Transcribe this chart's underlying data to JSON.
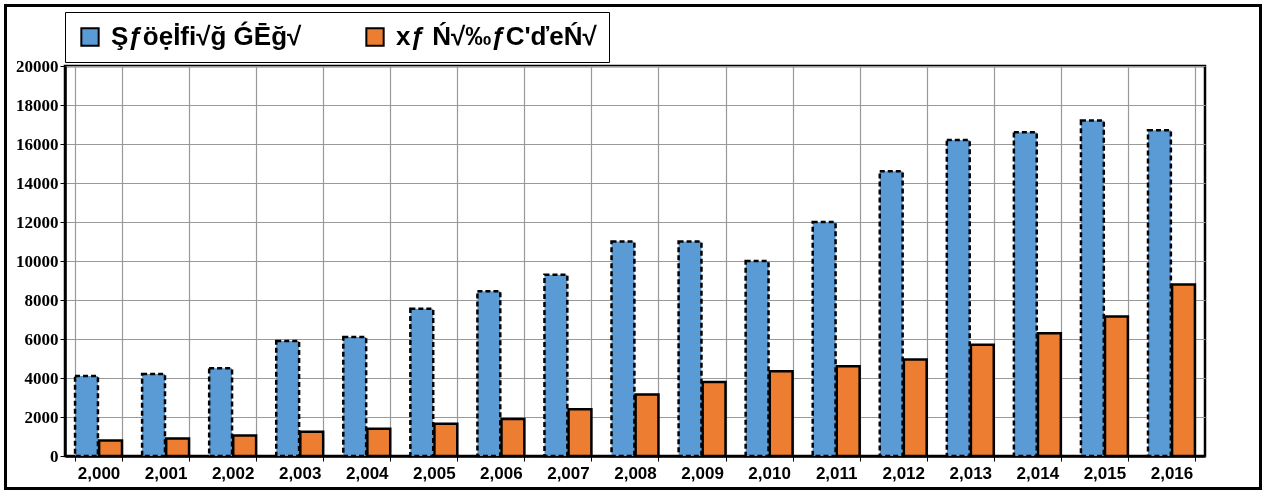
{
  "chart_data": {
    "type": "bar",
    "categories": [
      "2,000",
      "2,001",
      "2,002",
      "2,003",
      "2,004",
      "2,005",
      "2,006",
      "2,007",
      "2,008",
      "2,009",
      "2,010",
      "2,011",
      "2,012",
      "2,013",
      "2,014",
      "2,015",
      "2,016"
    ],
    "series": [
      {
        "name": "Şƒöẹİfi√ğ ǴĒğ√",
        "color": "#5b9bd5",
        "line_style": "dashed",
        "values": [
          4100,
          4200,
          4500,
          5900,
          6100,
          7550,
          8450,
          9300,
          11000,
          11000,
          10000,
          12000,
          14600,
          16200,
          16600,
          17200,
          16700
        ]
      },
      {
        "name": "xƒ Ń√‰ƒC'ďeŃ√",
        "color": "#ed7d31",
        "line_style": "solid",
        "values": [
          800,
          900,
          1050,
          1250,
          1400,
          1650,
          1900,
          2400,
          3150,
          3800,
          4350,
          4600,
          4950,
          5700,
          6300,
          7150,
          8800
        ]
      }
    ],
    "ylim": [
      0,
      20000
    ],
    "yticks": [
      0,
      2000,
      4000,
      6000,
      8000,
      10000,
      12000,
      14000,
      16000,
      18000,
      20000
    ],
    "grid": true,
    "legend": "top"
  }
}
